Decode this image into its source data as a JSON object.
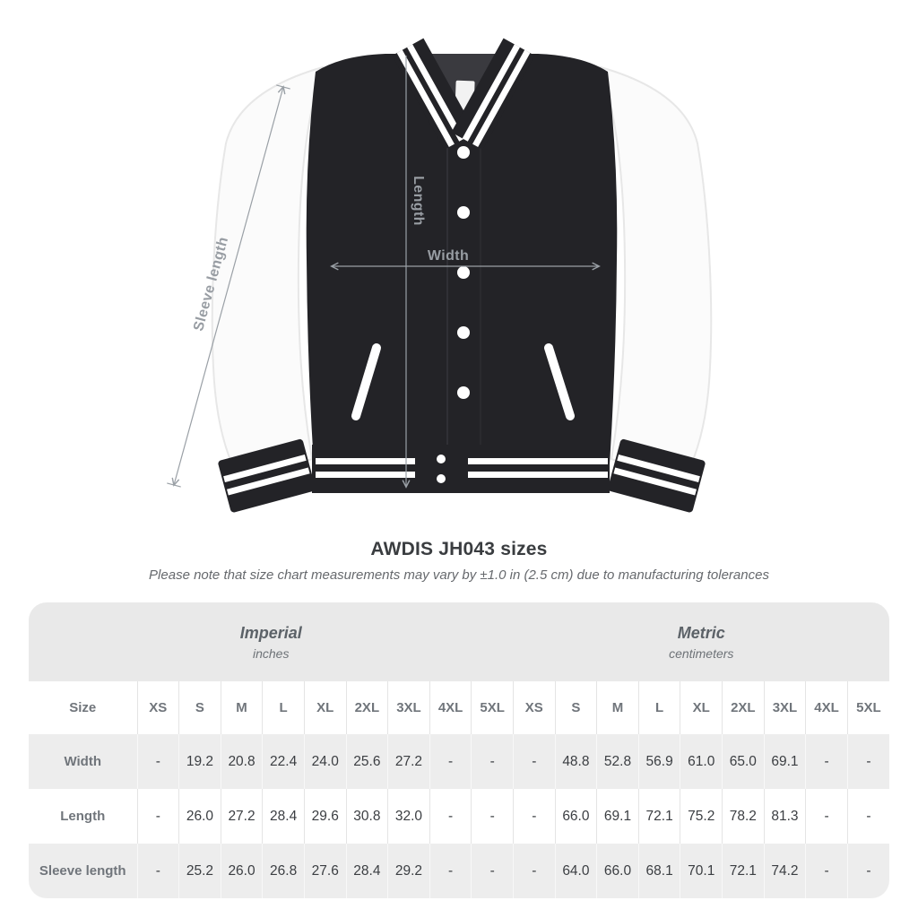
{
  "title": "AWDIS JH043 sizes",
  "subtitle": "Please note that size chart measurements may vary by ±1.0 in (2.5 cm) due to manufacturing tolerances",
  "figure": {
    "annotations": {
      "length_label": "Length",
      "width_label": "Width",
      "sleeve_label": "Sleeve length"
    }
  },
  "table": {
    "size_header": "Size",
    "sizes": [
      "XS",
      "S",
      "M",
      "L",
      "XL",
      "2XL",
      "3XL",
      "4XL",
      "5XL"
    ],
    "unit_groups": [
      {
        "name": "Imperial",
        "unit": "inches"
      },
      {
        "name": "Metric",
        "unit": "centimeters"
      }
    ],
    "rows": [
      {
        "label": "Width",
        "imperial": [
          "-",
          "19.2",
          "20.8",
          "22.4",
          "24.0",
          "25.6",
          "27.2",
          "-",
          "-"
        ],
        "metric": [
          "-",
          "48.8",
          "52.8",
          "56.9",
          "61.0",
          "65.0",
          "69.1",
          "-",
          "-"
        ]
      },
      {
        "label": "Length",
        "imperial": [
          "-",
          "26.0",
          "27.2",
          "28.4",
          "29.6",
          "30.8",
          "32.0",
          "-",
          "-"
        ],
        "metric": [
          "-",
          "66.0",
          "69.1",
          "72.1",
          "75.2",
          "78.2",
          "81.3",
          "-",
          "-"
        ]
      },
      {
        "label": "Sleeve length",
        "imperial": [
          "-",
          "25.2",
          "26.0",
          "26.8",
          "27.6",
          "28.4",
          "29.2",
          "-",
          "-"
        ],
        "metric": [
          "-",
          "64.0",
          "66.0",
          "68.1",
          "70.1",
          "72.1",
          "74.2",
          "-",
          "-"
        ]
      }
    ]
  },
  "colors": {
    "jacket_body": "#232327",
    "sleeve_white": "#fbfbfb",
    "stripe_white": "#ffffff",
    "annotation_gray": "#9aa0a6",
    "group_header_bg": "#e9e9e9",
    "stripe_row_bg": "#ededed",
    "label_text": "#70757b",
    "value_text": "#3b3e42"
  }
}
